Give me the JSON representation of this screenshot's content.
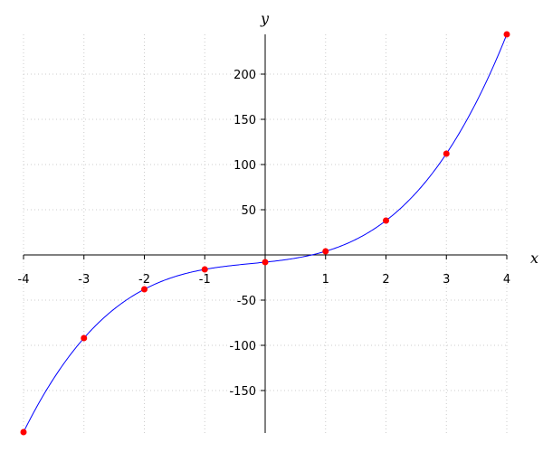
{
  "chart_data": {
    "type": "line",
    "title": "",
    "xlabel": "x",
    "ylabel": "y",
    "xlim": [
      -4,
      4
    ],
    "ylim": [
      -196,
      244
    ],
    "grid": true,
    "x_ticks": [
      -4,
      -3,
      -2,
      -1,
      1,
      2,
      3,
      4
    ],
    "x_tick_labels": [
      "-4",
      "-3",
      "-2",
      "-1",
      "1",
      "2",
      "3",
      "4"
    ],
    "y_ticks": [
      -150,
      -100,
      -50,
      50,
      100,
      150,
      200
    ],
    "y_tick_labels": [
      "-150",
      "-100",
      "-50",
      "50",
      "100",
      "150",
      "200"
    ],
    "curve": {
      "expression": "3x^3 + 2x^2 + 7x - 8",
      "color": "#0000ff"
    },
    "points": {
      "color": "#ff0000",
      "x": [
        -4,
        -3,
        -2,
        -1,
        0,
        1,
        2,
        3,
        4
      ],
      "y": [
        -196,
        -92,
        -38,
        -16,
        -8,
        4,
        38,
        112,
        244
      ]
    }
  }
}
